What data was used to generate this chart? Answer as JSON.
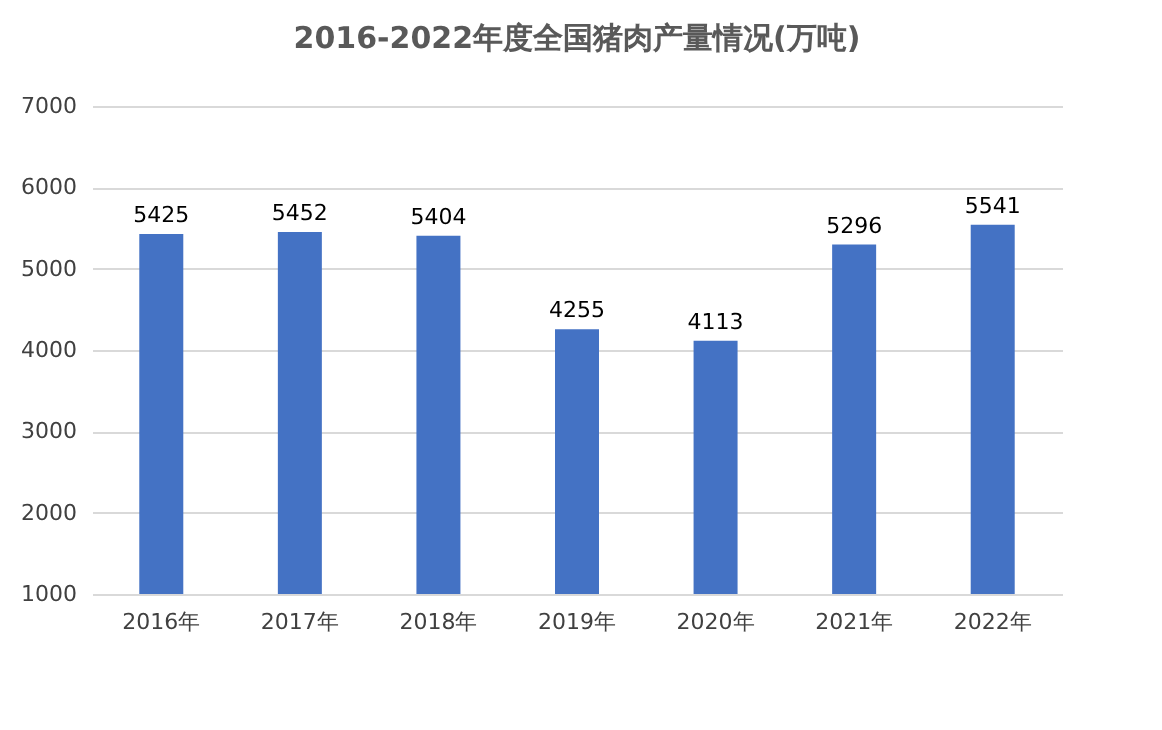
{
  "chart_data": {
    "type": "bar",
    "title": "2016-2022年度全国猪肉产量情况(万吨)",
    "categories": [
      "2016年",
      "2017年",
      "2018年",
      "2019年",
      "2020年",
      "2021年",
      "2022年"
    ],
    "values": [
      5425,
      5452,
      5404,
      4255,
      4113,
      5296,
      5541
    ],
    "color": "#4472c4",
    "ylim": [
      1000,
      7000
    ],
    "yticks": [
      1000,
      2000,
      3000,
      4000,
      5000,
      6000,
      7000
    ],
    "grid": "y",
    "data_labels": true
  }
}
